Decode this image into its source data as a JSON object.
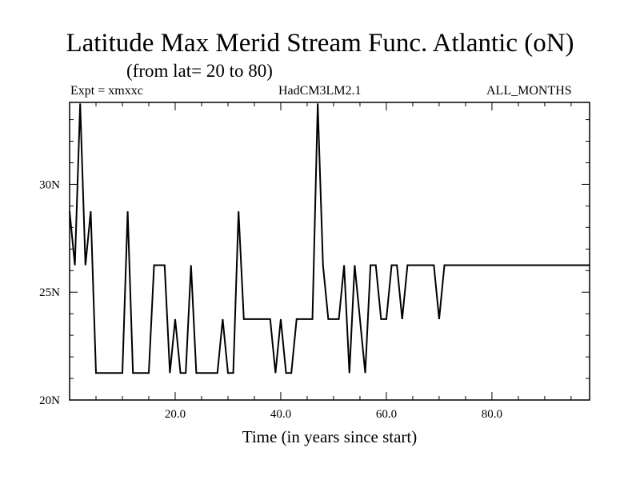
{
  "header": {
    "title": "Latitude Max Merid Stream Func. Atlantic (oN)",
    "subtitle": "(from lat= 20 to 80)",
    "expt": "Expt = xmxxc",
    "model": "HadCM3LM2.1",
    "months": "ALL_MONTHS"
  },
  "chart_data": {
    "type": "line",
    "xlabel": "Time (in years since start)",
    "ylabel": "",
    "xlim": [
      0,
      98.5
    ],
    "ylim": [
      20,
      33.8
    ],
    "x_ticks": [
      20,
      40,
      60,
      80
    ],
    "x_tick_labels": [
      "20.0",
      "40.0",
      "60.0",
      "80.0"
    ],
    "y_ticks": [
      20,
      25,
      30
    ],
    "y_tick_labels": [
      "20N",
      "25N",
      "30N"
    ],
    "grid": false,
    "series": [
      {
        "x": [
          0,
          1,
          2,
          3,
          4,
          5,
          6,
          7,
          8,
          9,
          10,
          11,
          12,
          13,
          14,
          15,
          16,
          17,
          18,
          19,
          20,
          21,
          22,
          23,
          24,
          25,
          26,
          27,
          28,
          29,
          30,
          31,
          32,
          33,
          34,
          35,
          36,
          37,
          38,
          39,
          40,
          41,
          42,
          43,
          44,
          45,
          46,
          47,
          48,
          49,
          50,
          51,
          52,
          53,
          54,
          55,
          56,
          57,
          58,
          59,
          60,
          61,
          62,
          63,
          64,
          65,
          66,
          67,
          68,
          69,
          70,
          71,
          72,
          98.5
        ],
        "y": [
          28.75,
          26.25,
          33.75,
          26.25,
          28.75,
          21.25,
          21.25,
          21.25,
          21.25,
          21.25,
          21.25,
          28.75,
          21.25,
          21.25,
          21.25,
          21.25,
          26.25,
          26.25,
          26.25,
          21.25,
          23.75,
          21.25,
          21.25,
          26.25,
          21.25,
          21.25,
          21.25,
          21.25,
          21.25,
          23.75,
          21.25,
          21.25,
          28.75,
          23.75,
          23.75,
          23.75,
          23.75,
          23.75,
          23.75,
          21.25,
          23.75,
          21.25,
          21.25,
          23.75,
          23.75,
          23.75,
          23.75,
          33.75,
          26.25,
          23.75,
          23.75,
          23.75,
          26.25,
          21.25,
          26.25,
          23.75,
          21.25,
          26.25,
          26.25,
          23.75,
          23.75,
          26.25,
          26.25,
          23.75,
          26.25,
          26.25,
          26.25,
          26.25,
          26.25,
          26.25,
          23.75,
          26.25,
          26.25,
          26.25
        ]
      }
    ]
  }
}
